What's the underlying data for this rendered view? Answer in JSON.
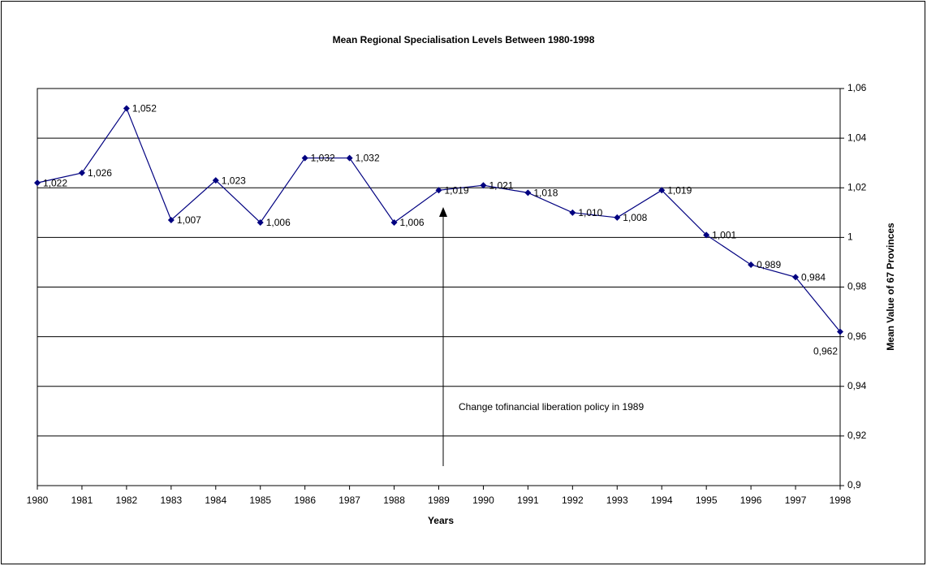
{
  "chart_data": {
    "type": "line",
    "title": "Mean Regional Specialisation Levels Between 1980-1998",
    "x_label": "Years",
    "y_label": "Mean Value of 67 Provinces",
    "annotation": "Change tofinancial liberation policy in 1989",
    "categories": [
      "1980",
      "1981",
      "1982",
      "1983",
      "1984",
      "1985",
      "1986",
      "1987",
      "1988",
      "1989",
      "1990",
      "1991",
      "1992",
      "1993",
      "1994",
      "1995",
      "1996",
      "1997",
      "1998"
    ],
    "series": [
      {
        "name": "Mean Value of 67 Provinces",
        "color": "#000080",
        "values": [
          1.022,
          1.026,
          1.052,
          1.007,
          1.023,
          1.006,
          1.032,
          1.032,
          1.006,
          1.019,
          1.021,
          1.018,
          1.01,
          1.008,
          1.019,
          1.001,
          0.989,
          0.984,
          0.962
        ],
        "value_labels": [
          "1,022",
          "1,026",
          "1,052",
          "1,007",
          "1,023",
          "1,006",
          "1,032",
          "1,032",
          "1,006",
          "1,019",
          "1,021",
          "1,018",
          "1,010",
          "1,008",
          "1,019",
          "1,001",
          "0,989",
          "0,984",
          "0,962"
        ]
      }
    ],
    "ylim": [
      0.9,
      1.06
    ],
    "yticks": [
      {
        "value": 0.9,
        "label": "0,9"
      },
      {
        "value": 0.92,
        "label": "0,92"
      },
      {
        "value": 0.94,
        "label": "0,94"
      },
      {
        "value": 0.96,
        "label": "0,96"
      },
      {
        "value": 0.98,
        "label": "0,98"
      },
      1,
      {
        "value": 1.02,
        "label": "1,02"
      },
      {
        "value": 1.04,
        "label": "1,04"
      },
      {
        "value": 1.06,
        "label": "1,06"
      }
    ],
    "y_axis_side": "right",
    "grid": true
  }
}
